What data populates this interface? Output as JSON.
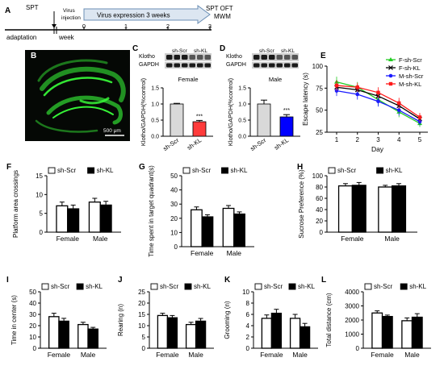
{
  "colors": {
    "axis": "#000000",
    "timeline_arrow_fill": "#dce6f1",
    "timeline_arrow_stroke": "#6b8fb5",
    "bar_sh_scr": "#ffffff",
    "bar_sh_kl": "#000000",
    "western_scr_bar": "#d9d9d9",
    "western_kl_bar_female": "#ff3b3b",
    "western_kl_bar_male": "#0000ff",
    "micrograph_bg": "#050805",
    "micrograph_green": "#39ff3a",
    "line_f_scr": "#22cc22",
    "line_f_kl": "#000000",
    "line_m_scr": "#1a1aff",
    "line_m_kl": "#ff1a1a"
  },
  "panel_a": {
    "letter": "A",
    "spt_label": "SPT",
    "virus_label_line1": "Virus",
    "virus_label_line2": "injection",
    "expression_label": "Virus expression  3 weeks",
    "end_label_line1": "SPT OFT",
    "end_label_line2": "MWM",
    "ticks": [
      "0",
      "1",
      "2",
      "3"
    ],
    "adaptation_label": "adaptation",
    "week_label": "week"
  },
  "panel_b": {
    "letter": "B",
    "scale_label": "500 μm",
    "image_icon": "hippocampus-fluorescence-micrograph"
  },
  "western_c": {
    "letter": "C",
    "band_labels": [
      "Klotho",
      "GAPDH"
    ],
    "lane_labels": [
      "sh-Scr",
      "sh-KL"
    ],
    "group_title": "Female",
    "ylabel": "Klotho/GAPDH(%control)",
    "yticks": [
      "0.0",
      "0.5",
      "1.0",
      "1.5"
    ],
    "categories": [
      "sh-Scr",
      "sh-KL"
    ],
    "values": [
      1.0,
      0.45
    ],
    "errors": [
      0.02,
      0.04
    ],
    "ylim": [
      0,
      1.5
    ],
    "significance": "***"
  },
  "western_d": {
    "letter": "D",
    "band_labels": [
      "Klotho",
      "GAPDH"
    ],
    "lane_labels": [
      "sh-Scr",
      "sh-KL"
    ],
    "group_title": "Male",
    "ylabel": "Klotho/GAPDH(%control)",
    "yticks": [
      "0.0",
      "0.5",
      "1.0",
      "1.5"
    ],
    "categories": [
      "sh-Scr",
      "sh-KL"
    ],
    "values": [
      1.0,
      0.6
    ],
    "errors": [
      0.12,
      0.07
    ],
    "ylim": [
      0,
      1.5
    ],
    "significance": "***"
  },
  "chart_e": {
    "letter": "E",
    "ylabel": "Escape latency (s)",
    "xlabel": "Day",
    "xticks": [
      "1",
      "2",
      "3",
      "4",
      "5"
    ],
    "yticks": [
      "25",
      "50",
      "75",
      "100"
    ],
    "ylim": [
      25,
      100
    ],
    "legend": [
      "F-sh-Scr",
      "F-sh-KL",
      "M-sh-Scr",
      "M-sh-KL"
    ]
  },
  "bar_legend": {
    "scr": "sh-Scr",
    "kl": "sh-KL"
  },
  "bar_panels": [
    {
      "letter": "F",
      "ylabel": "Platform area crossings",
      "yticks": [
        "0",
        "5",
        "10",
        "15"
      ]
    },
    {
      "letter": "G",
      "ylabel": "Time spent in target quadrant(s)",
      "yticks": [
        "0",
        "10",
        "20",
        "30",
        "40",
        "50"
      ]
    },
    {
      "letter": "H",
      "ylabel": "Sucrose Preference (%)",
      "yticks": [
        "0",
        "20",
        "40",
        "60",
        "80",
        "100"
      ]
    },
    {
      "letter": "I",
      "ylabel": "Time in center (s)",
      "yticks": [
        "0",
        "10",
        "20",
        "30",
        "40",
        "50"
      ]
    },
    {
      "letter": "J",
      "ylabel": "Rearing (n)",
      "yticks": [
        "0",
        "5",
        "10",
        "15",
        "20",
        "25"
      ]
    },
    {
      "letter": "K",
      "ylabel": "Grooming (n)",
      "yticks": [
        "0",
        "2",
        "4",
        "6",
        "8",
        "10"
      ]
    },
    {
      "letter": "L",
      "ylabel": "Total distance (cm)",
      "yticks": [
        "0",
        "1000",
        "2000",
        "3000",
        "4000"
      ]
    }
  ],
  "chart_data": [
    {
      "type": "line",
      "panel": "E",
      "x": [
        1,
        2,
        3,
        4,
        5
      ],
      "xlabel": "Day",
      "ylabel": "Escape latency (s)",
      "ylim": [
        25,
        100
      ],
      "legend_position": "top-right",
      "series": [
        {
          "name": "F-sh-Scr",
          "values": [
            82,
            76,
            62,
            48,
            35
          ],
          "errors": [
            6,
            6,
            7,
            6,
            4
          ]
        },
        {
          "name": "F-sh-KL",
          "values": [
            76,
            73,
            66,
            55,
            40
          ],
          "errors": [
            7,
            6,
            6,
            6,
            5
          ]
        },
        {
          "name": "M-sh-Scr",
          "values": [
            72,
            68,
            60,
            50,
            37
          ],
          "errors": [
            6,
            6,
            6,
            6,
            4
          ]
        },
        {
          "name": "M-sh-KL",
          "values": [
            78,
            76,
            70,
            58,
            42
          ],
          "errors": [
            6,
            5,
            6,
            6,
            5
          ]
        }
      ]
    },
    {
      "type": "bar",
      "panel": "F",
      "categories": [
        "Female",
        "Male"
      ],
      "ylabel": "Platform area crossings",
      "ylim": [
        0,
        15
      ],
      "series": [
        {
          "name": "sh-Scr",
          "values": [
            7.0,
            8.0
          ],
          "errors": [
            1.0,
            1.0
          ]
        },
        {
          "name": "sh-KL",
          "values": [
            6.2,
            7.2
          ],
          "errors": [
            1.0,
            1.0
          ]
        }
      ]
    },
    {
      "type": "bar",
      "panel": "G",
      "categories": [
        "Female",
        "Male"
      ],
      "ylabel": "Time spent in target quadrant(s)",
      "ylim": [
        0,
        50
      ],
      "series": [
        {
          "name": "sh-Scr",
          "values": [
            26,
            27
          ],
          "errors": [
            2,
            2
          ]
        },
        {
          "name": "sh-KL",
          "values": [
            21,
            23
          ],
          "errors": [
            1.5,
            1.5
          ]
        }
      ]
    },
    {
      "type": "bar",
      "panel": "H",
      "categories": [
        "Female",
        "Male"
      ],
      "ylabel": "Sucrose Preference (%)",
      "ylim": [
        0,
        100
      ],
      "series": [
        {
          "name": "sh-Scr",
          "values": [
            82,
            80
          ],
          "errors": [
            4,
            3
          ]
        },
        {
          "name": "sh-KL",
          "values": [
            83,
            82
          ],
          "errors": [
            5,
            4
          ]
        }
      ]
    },
    {
      "type": "bar",
      "panel": "I",
      "categories": [
        "Female",
        "Male"
      ],
      "ylabel": "Time in center (s)",
      "ylim": [
        0,
        50
      ],
      "series": [
        {
          "name": "sh-Scr",
          "values": [
            28,
            21
          ],
          "errors": [
            3,
            2
          ]
        },
        {
          "name": "sh-KL",
          "values": [
            24,
            17
          ],
          "errors": [
            2.5,
            1.5
          ]
        }
      ]
    },
    {
      "type": "bar",
      "panel": "J",
      "categories": [
        "Female",
        "Male"
      ],
      "ylabel": "Rearing (n)",
      "ylim": [
        0,
        25
      ],
      "series": [
        {
          "name": "sh-Scr",
          "values": [
            14.5,
            10.5
          ],
          "errors": [
            1,
            1
          ]
        },
        {
          "name": "sh-KL",
          "values": [
            13.5,
            12
          ],
          "errors": [
            1,
            1.2
          ]
        }
      ]
    },
    {
      "type": "bar",
      "panel": "K",
      "categories": [
        "Female",
        "Male"
      ],
      "ylabel": "Grooming (n)",
      "ylim": [
        0,
        10
      ],
      "series": [
        {
          "name": "sh-Scr",
          "values": [
            5.3,
            5.3
          ],
          "errors": [
            0.6,
            0.7
          ]
        },
        {
          "name": "sh-KL",
          "values": [
            6.2,
            3.8
          ],
          "errors": [
            0.7,
            0.6
          ]
        }
      ]
    },
    {
      "type": "bar",
      "panel": "L",
      "categories": [
        "Female",
        "Male"
      ],
      "ylabel": "Total distance (cm)",
      "ylim": [
        0,
        4000
      ],
      "series": [
        {
          "name": "sh-Scr",
          "values": [
            2500,
            1950
          ],
          "errors": [
            150,
            200
          ]
        },
        {
          "name": "sh-KL",
          "values": [
            2250,
            2200
          ],
          "errors": [
            100,
            250
          ]
        }
      ]
    }
  ]
}
